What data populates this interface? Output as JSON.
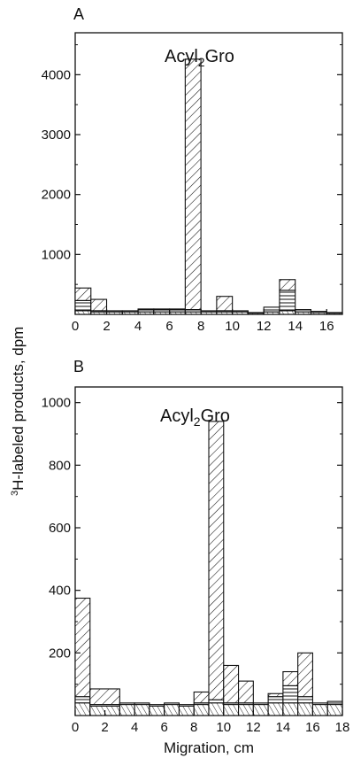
{
  "chart_data": [
    {
      "panel": "A",
      "type": "bar",
      "annotation": "Acyl",
      "annotation_sub": "2",
      "annotation_suffix": "Gro",
      "xlim": [
        0,
        17
      ],
      "ylim": [
        0,
        4700
      ],
      "x_ticks": [
        0,
        2,
        4,
        6,
        8,
        10,
        12,
        14,
        16
      ],
      "y_ticks": [
        1000,
        2000,
        3000,
        4000
      ],
      "bars": [
        {
          "x0": 0,
          "x1": 1,
          "top": 440,
          "mid": 230,
          "base": 60
        },
        {
          "x0": 1,
          "x1": 2,
          "top": 250,
          "mid": 60,
          "base": 40
        },
        {
          "x0": 2,
          "x1": 3,
          "top": 60,
          "mid": 60,
          "base": 40
        },
        {
          "x0": 3,
          "x1": 4,
          "top": 60,
          "mid": 60,
          "base": 40
        },
        {
          "x0": 4,
          "x1": 5,
          "top": 90,
          "mid": 80,
          "base": 40
        },
        {
          "x0": 5,
          "x1": 6,
          "top": 90,
          "mid": 80,
          "base": 40
        },
        {
          "x0": 6,
          "x1": 7,
          "top": 90,
          "mid": 80,
          "base": 40
        },
        {
          "x0": 7,
          "x1": 8,
          "top": 4260,
          "mid": 80,
          "base": 40
        },
        {
          "x0": 8,
          "x1": 9,
          "top": 60,
          "mid": 60,
          "base": 40
        },
        {
          "x0": 9,
          "x1": 10,
          "top": 300,
          "mid": 60,
          "base": 40
        },
        {
          "x0": 10,
          "x1": 11,
          "top": 60,
          "mid": 60,
          "base": 40
        },
        {
          "x0": 11,
          "x1": 12,
          "top": 30,
          "mid": 30,
          "base": 20
        },
        {
          "x0": 12,
          "x1": 13,
          "top": 120,
          "mid": 120,
          "base": 40
        },
        {
          "x0": 13,
          "x1": 14,
          "top": 580,
          "mid": 400,
          "base": 60
        },
        {
          "x0": 14,
          "x1": 15,
          "top": 80,
          "mid": 80,
          "base": 40
        },
        {
          "x0": 15,
          "x1": 16,
          "top": 50,
          "mid": 50,
          "base": 30
        },
        {
          "x0": 16,
          "x1": 17,
          "top": 30,
          "mid": 30,
          "base": 20
        }
      ]
    },
    {
      "panel": "B",
      "type": "bar",
      "annotation": "Acyl",
      "annotation_sub": "2",
      "annotation_suffix": "Gro",
      "xlim": [
        0,
        18
      ],
      "ylim": [
        0,
        1050
      ],
      "x_ticks": [
        0,
        2,
        4,
        6,
        8,
        10,
        12,
        14,
        16,
        18
      ],
      "y_ticks": [
        200,
        400,
        600,
        800,
        1000
      ],
      "bars": [
        {
          "x0": 0,
          "x1": 1,
          "top": 375,
          "mid": 60,
          "base": 40
        },
        {
          "x0": 1,
          "x1": 3,
          "top": 85,
          "mid": 35,
          "base": 30
        },
        {
          "x0": 3,
          "x1": 4,
          "top": 40,
          "mid": 40,
          "base": 35
        },
        {
          "x0": 4,
          "x1": 5,
          "top": 40,
          "mid": 40,
          "base": 35
        },
        {
          "x0": 5,
          "x1": 6,
          "top": 35,
          "mid": 35,
          "base": 30
        },
        {
          "x0": 6,
          "x1": 7,
          "top": 40,
          "mid": 40,
          "base": 35
        },
        {
          "x0": 7,
          "x1": 8,
          "top": 35,
          "mid": 35,
          "base": 30
        },
        {
          "x0": 8,
          "x1": 9,
          "top": 75,
          "mid": 40,
          "base": 35
        },
        {
          "x0": 9,
          "x1": 10,
          "top": 940,
          "mid": 50,
          "base": 40
        },
        {
          "x0": 10,
          "x1": 11,
          "top": 160,
          "mid": 40,
          "base": 35
        },
        {
          "x0": 11,
          "x1": 12,
          "top": 110,
          "mid": 40,
          "base": 35
        },
        {
          "x0": 12,
          "x1": 13,
          "top": 40,
          "mid": 40,
          "base": 35
        },
        {
          "x0": 13,
          "x1": 14,
          "top": 70,
          "mid": 60,
          "base": 40
        },
        {
          "x0": 14,
          "x1": 15,
          "top": 140,
          "mid": 95,
          "base": 40
        },
        {
          "x0": 15,
          "x1": 16,
          "top": 200,
          "mid": 60,
          "base": 40
        },
        {
          "x0": 16,
          "x1": 17,
          "top": 40,
          "mid": 40,
          "base": 35
        },
        {
          "x0": 17,
          "x1": 18,
          "top": 45,
          "mid": 45,
          "base": 35
        }
      ]
    }
  ],
  "ylabel_sup": "3",
  "ylabel": "H-labeled products, dpm",
  "xlabel": "Migration, cm"
}
